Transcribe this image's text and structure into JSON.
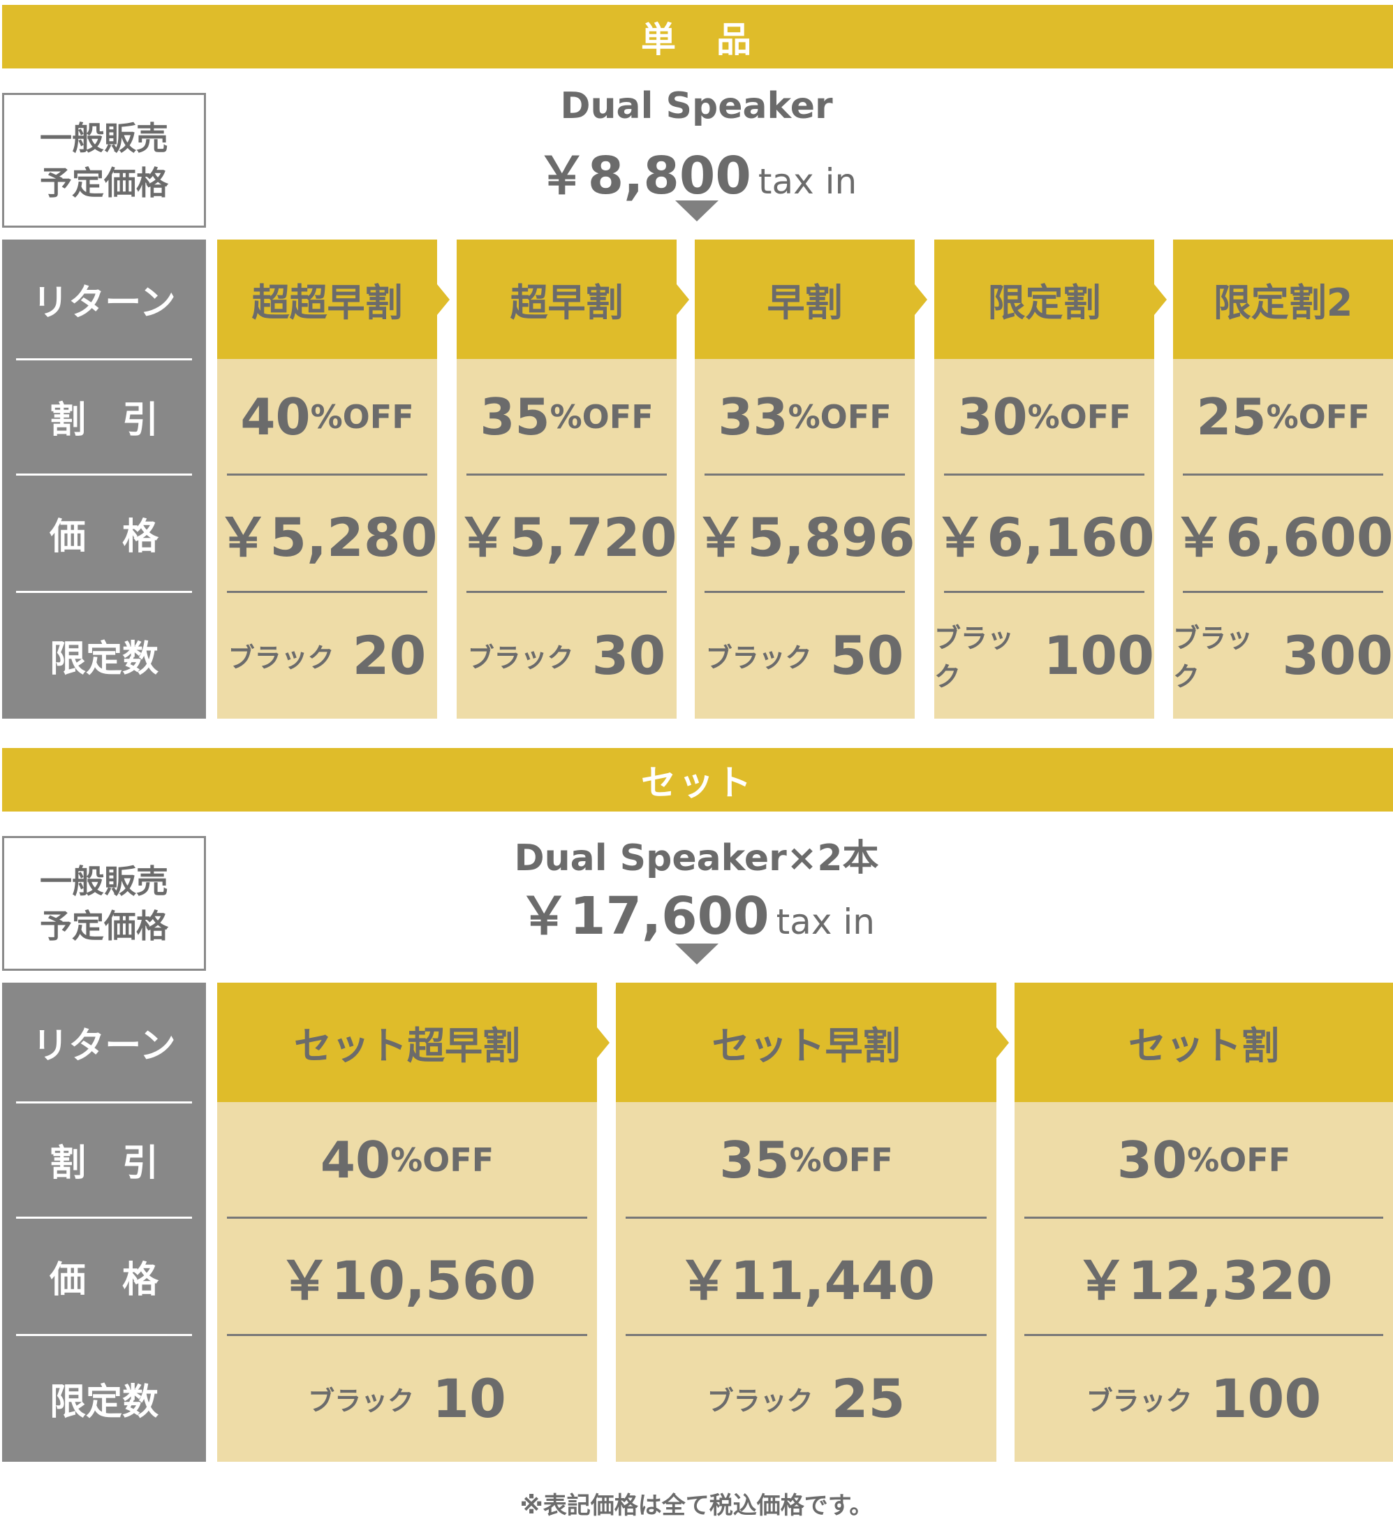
{
  "colors": {
    "gold": "#dfbc2a",
    "cream": "#eedca7",
    "gray": "#888888",
    "text": "#6b6b6b"
  },
  "side_labels": {
    "return": "リターン",
    "discount": "割　引",
    "price": "価　格",
    "limit": "限定数"
  },
  "single": {
    "band": "単　品",
    "regular_label": "一般販売\n予定価格",
    "product": "Dual Speaker",
    "price": "￥8,800",
    "tax": "tax in",
    "tiers": [
      {
        "name": "超超早割",
        "pct": "40",
        "off": "%OFF",
        "price": "￥5,280",
        "color_label": "ブラック",
        "qty": "20"
      },
      {
        "name": "超早割",
        "pct": "35",
        "off": "%OFF",
        "price": "￥5,720",
        "color_label": "ブラック",
        "qty": "30"
      },
      {
        "name": "早割",
        "pct": "33",
        "off": "%OFF",
        "price": "￥5,896",
        "color_label": "ブラック",
        "qty": "50"
      },
      {
        "name": "限定割",
        "pct": "30",
        "off": "%OFF",
        "price": "￥6,160",
        "color_label": "ブラック",
        "qty": "100"
      },
      {
        "name": "限定割2",
        "pct": "25",
        "off": "%OFF",
        "price": "￥6,600",
        "color_label": "ブラック",
        "qty": "300"
      }
    ]
  },
  "set": {
    "band": "セット",
    "regular_label": "一般販売\n予定価格",
    "product": "Dual Speaker×2本",
    "price": "￥17,600",
    "tax": "tax in",
    "tiers": [
      {
        "name": "セット超早割",
        "pct": "40",
        "off": "%OFF",
        "price": "￥10,560",
        "color_label": "ブラック",
        "qty": "10"
      },
      {
        "name": "セット早割",
        "pct": "35",
        "off": "%OFF",
        "price": "￥11,440",
        "color_label": "ブラック",
        "qty": "25"
      },
      {
        "name": "セット割",
        "pct": "30",
        "off": "%OFF",
        "price": "￥12,320",
        "color_label": "ブラック",
        "qty": "100"
      }
    ]
  },
  "footnote": "※表記価格は全て税込価格です。"
}
